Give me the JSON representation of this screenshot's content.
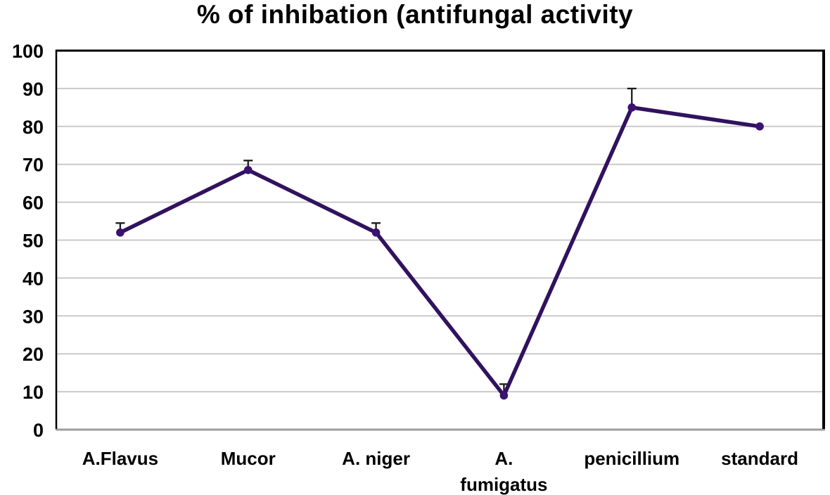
{
  "chart_data": {
    "type": "line",
    "title": "% of inhibation (antifungal activity",
    "categories": [
      "A.Flavus",
      "Mucor",
      "A. niger",
      "A. fumigatus",
      "penicillium",
      "standard"
    ],
    "categories_display": [
      [
        "A.Flavus"
      ],
      [
        "Mucor"
      ],
      [
        "A. niger"
      ],
      [
        "A.",
        "fumigatus"
      ],
      [
        "penicillium"
      ],
      [
        "standard"
      ]
    ],
    "series": [
      {
        "name": "% of inhibition",
        "values": [
          52,
          68.5,
          52,
          9,
          85,
          80
        ],
        "errors_plus": [
          2.5,
          2.5,
          2.5,
          3,
          5,
          0
        ]
      }
    ],
    "xlabel": "",
    "ylabel": "",
    "ylim": [
      0,
      100
    ],
    "yticks": [
      0,
      10,
      20,
      30,
      40,
      50,
      60,
      70,
      80,
      90,
      100
    ],
    "grid": "horizontal",
    "legend": "none",
    "marker": "circle",
    "colors": {
      "line": "#31125e",
      "marker": "#3a1270",
      "error_bar": "#1a1a1a",
      "gridline": "#c9c9c9",
      "axis": "#000000",
      "baseline": "#9d9d9d",
      "text": "#000000",
      "background": "#ffffff"
    }
  }
}
